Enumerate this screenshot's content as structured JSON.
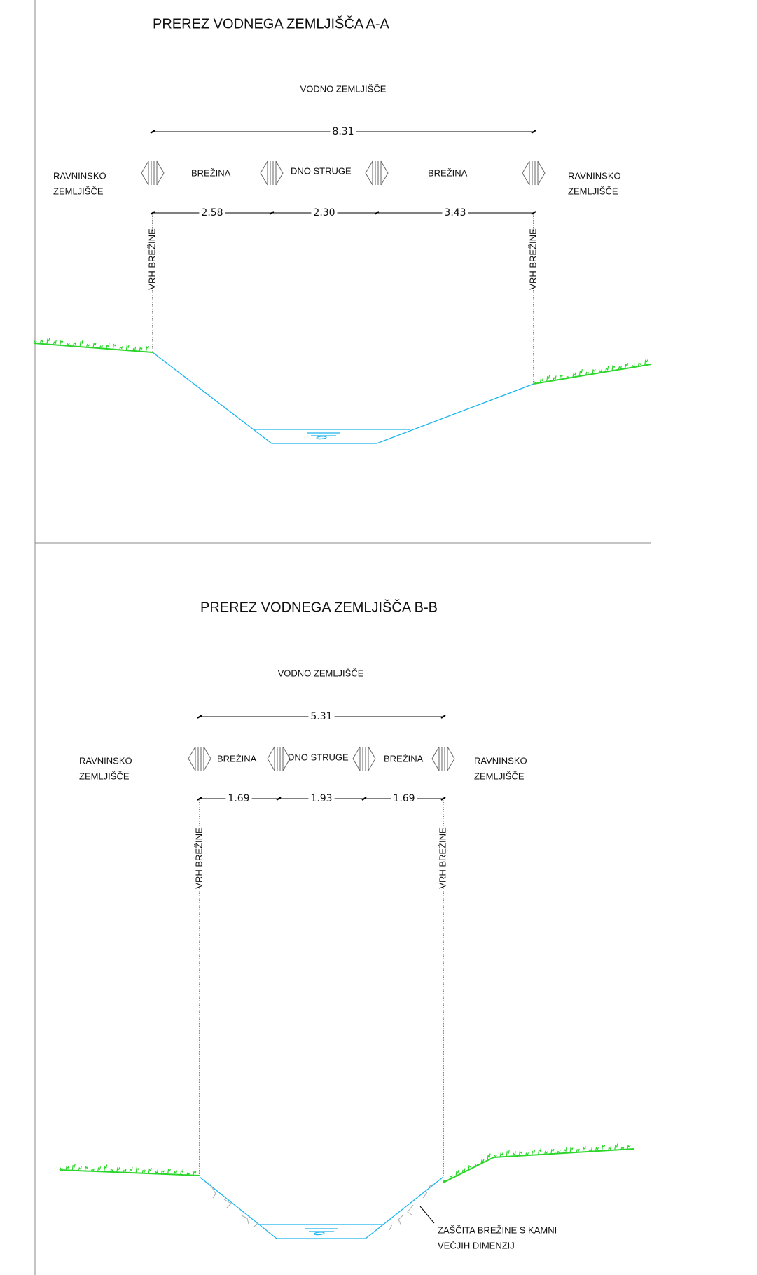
{
  "drawing": {
    "sections": [
      {
        "title": "PREREZ VODNEGA ZEMLJIŠČA A-A",
        "zone": "VODNO ZEMLJIŠČE",
        "total": "8.31",
        "left_zone": [
          "RAVNINSKO",
          "ZEMLJIŠČE"
        ],
        "right_zone": [
          "RAVNINSKO",
          "ZEMLJIŠČE"
        ],
        "parts": [
          {
            "label": "BREŽINA",
            "width": "2.58"
          },
          {
            "label": "DNO STRUGE",
            "width": "2.30"
          },
          {
            "label": "BREŽINA",
            "width": "3.43"
          }
        ],
        "edge_labels": [
          "VRH BREŽINE",
          "VRH BREŽINE"
        ]
      },
      {
        "title": "PREREZ VODNEGA ZEMLJIŠČA B-B",
        "zone": "VODNO ZEMLJIŠČE",
        "total": "5.31",
        "left_zone": [
          "RAVNINSKO",
          "ZEMLJIŠČE"
        ],
        "right_zone": [
          "RAVNINSKO",
          "ZEMLJIŠČE"
        ],
        "parts": [
          {
            "label": "BREŽINA",
            "width": "1.69"
          },
          {
            "label": "DNO STRUGE",
            "width": "1.93"
          },
          {
            "label": "BREŽINA",
            "width": "1.69"
          }
        ],
        "edge_labels": [
          "VRH BREŽINE",
          "VRH BREŽINE"
        ],
        "note": [
          "ZAŠČITA BREŽINE S KAMNI",
          "VEČJIH DIMENZIJ"
        ]
      }
    ]
  }
}
